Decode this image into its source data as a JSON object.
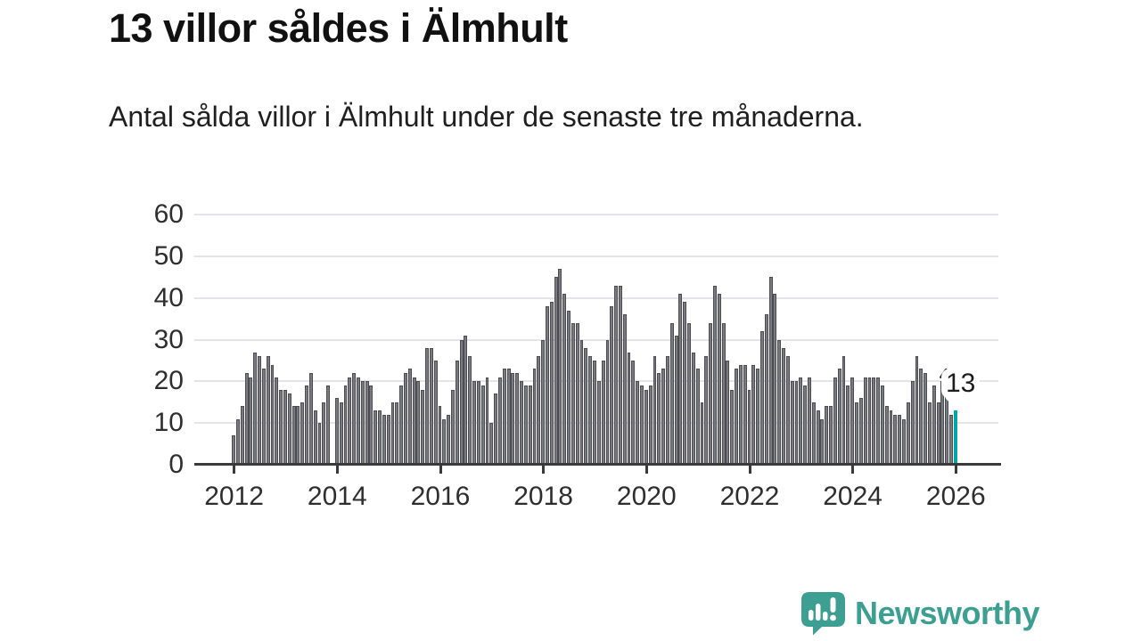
{
  "title": "13 villor såldes i Älmhult",
  "subtitle": "Antal sålda villor i Älmhult under de senaste tre månaderna.",
  "callout": {
    "label": "13"
  },
  "branding": {
    "logo_text": "Newsworthy",
    "logo_color": "#3d9e92"
  },
  "chart_data": {
    "type": "bar",
    "title": "13 villor såldes i Älmhult",
    "subtitle": "Antal sålda villor i Älmhult under de senaste tre månaderna.",
    "unit": "sålda villor per 3-månadersperiod",
    "start_year": 2012,
    "start_month": 1,
    "frequency": "monthly",
    "x_tick_years": [
      "2012",
      "2014",
      "2016",
      "2018",
      "2020",
      "2022",
      "2024",
      "2026"
    ],
    "y_ticks": [
      0,
      10,
      20,
      30,
      40,
      50,
      60
    ],
    "ylim": [
      0,
      60
    ],
    "grid": true,
    "bar_color": "#797980",
    "highlight_color": "#00a7a7",
    "highlight_index": 168,
    "highlight_value": 13,
    "values": [
      7,
      11,
      14,
      22,
      21,
      27,
      26,
      23,
      26,
      24,
      21,
      18,
      18,
      17,
      14,
      14,
      15,
      19,
      22,
      13,
      10,
      15,
      19,
      0,
      16,
      15,
      19,
      21,
      22,
      21,
      20,
      20,
      19,
      13,
      13,
      12,
      12,
      15,
      15,
      19,
      22,
      23,
      21,
      20,
      18,
      28,
      28,
      25,
      14,
      11,
      12,
      18,
      25,
      30,
      31,
      26,
      20,
      20,
      19,
      21,
      10,
      17,
      21,
      23,
      23,
      22,
      22,
      20,
      19,
      19,
      23,
      26,
      30,
      38,
      39,
      45,
      47,
      41,
      37,
      34,
      34,
      30,
      28,
      26,
      25,
      20,
      25,
      30,
      38,
      43,
      43,
      36,
      27,
      25,
      20,
      19,
      18,
      19,
      26,
      22,
      23,
      26,
      34,
      31,
      41,
      39,
      34,
      27,
      23,
      15,
      26,
      34,
      43,
      41,
      34,
      25,
      18,
      23,
      24,
      24,
      18,
      24,
      23,
      32,
      36,
      45,
      41,
      30,
      28,
      26,
      20,
      20,
      21,
      19,
      21,
      15,
      13,
      11,
      14,
      14,
      21,
      23,
      26,
      19,
      21,
      15,
      16,
      21,
      21,
      21,
      21,
      19,
      14,
      13,
      12,
      12,
      11,
      15,
      20,
      26,
      23,
      22,
      15,
      19,
      15,
      20,
      17,
      12,
      13
    ]
  }
}
